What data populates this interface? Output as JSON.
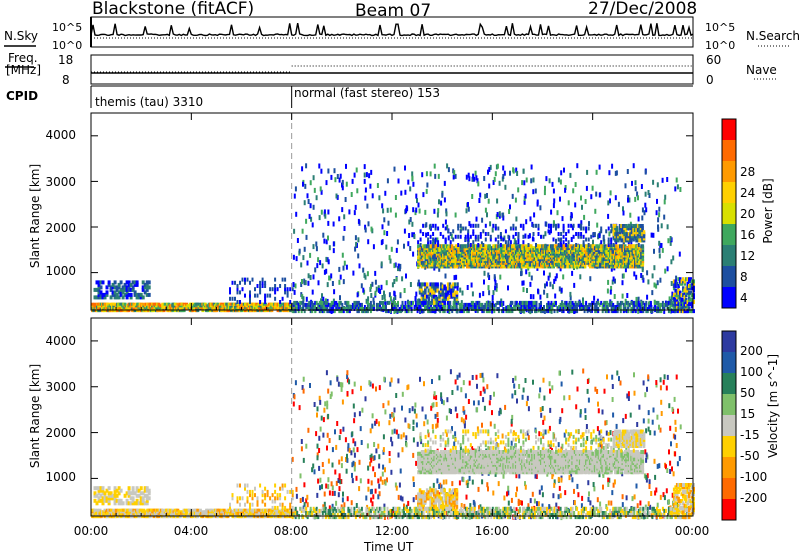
{
  "header": {
    "station": "Blackstone (fitACF)",
    "beam": "Beam 07",
    "date": "27/Dec/2008"
  },
  "noise_panel": {
    "left_label": "N.Sky",
    "right_label": "N.Search",
    "left_ticks": [
      "10^5",
      "10^0"
    ],
    "right_ticks": [
      "10^5",
      "10^0"
    ]
  },
  "freq_panel": {
    "left_label_1": "Freq.",
    "left_label_2": "[MHz]",
    "right_label": "Nave",
    "left_ticks": [
      "18",
      "8"
    ],
    "right_ticks": [
      "60",
      "0"
    ]
  },
  "cpid_panel": {
    "label": "CPID",
    "modes": [
      {
        "name": "themis (tau) 3310"
      },
      {
        "name": "normal (fast stereo) 153"
      }
    ]
  },
  "axes": {
    "y_label": "Slant Range [km]",
    "x_label": "Time UT",
    "y_ticks": [
      "4000",
      "3000",
      "2000",
      "1000"
    ],
    "x_ticks": [
      "00:00",
      "04:00",
      "08:00",
      "12:00",
      "16:00",
      "20:00",
      "00:00"
    ]
  },
  "power_colorbar": {
    "label": "Power [dB]",
    "ticks": [
      "28",
      "24",
      "20",
      "16",
      "12",
      "8",
      "4"
    ],
    "colors": [
      "#ff0000",
      "#ff6a00",
      "#ff9a00",
      "#ffd000",
      "#d8e000",
      "#3fa85e",
      "#2b7f74",
      "#1d4fa0",
      "#0000ff"
    ]
  },
  "velocity_colorbar": {
    "label": "Velocity [m s^-1]",
    "ticks": [
      "200",
      "100",
      "50",
      "15",
      "-15",
      "-50",
      "-100",
      "-200"
    ],
    "colors": [
      "#2d3aa0",
      "#1f5aa8",
      "#27805a",
      "#7fc06a",
      "#c8c8c0",
      "#ffd000",
      "#ff9a00",
      "#ff6a00",
      "#ff0000"
    ]
  },
  "chart_data": {
    "type": "heatmap",
    "time_range": [
      "00:00",
      "24:00"
    ],
    "ylim": [
      180,
      4500
    ],
    "mode_change_time": "08:00",
    "noise_series": {
      "sky_level": "10^1",
      "search_level": "10^0.5"
    },
    "power_bands": [
      {
        "t": [
          "00:00",
          "08:00"
        ],
        "range": [
          200,
          300
        ],
        "level": "12-20"
      },
      {
        "t": [
          "13:00",
          "22:00"
        ],
        "range": [
          1250,
          1550
        ],
        "level": "8-20"
      },
      {
        "t": [
          "13:00",
          "14:30"
        ],
        "range": [
          400,
          700
        ],
        "level": "4-12"
      }
    ],
    "velocity_bands": [
      {
        "t": [
          "13:00",
          "22:00"
        ],
        "range": [
          1250,
          1550
        ],
        "level": "-15 to 15"
      },
      {
        "t": [
          "00:00",
          "08:00"
        ],
        "range": [
          200,
          300
        ],
        "level": "-50 to 15"
      }
    ]
  }
}
